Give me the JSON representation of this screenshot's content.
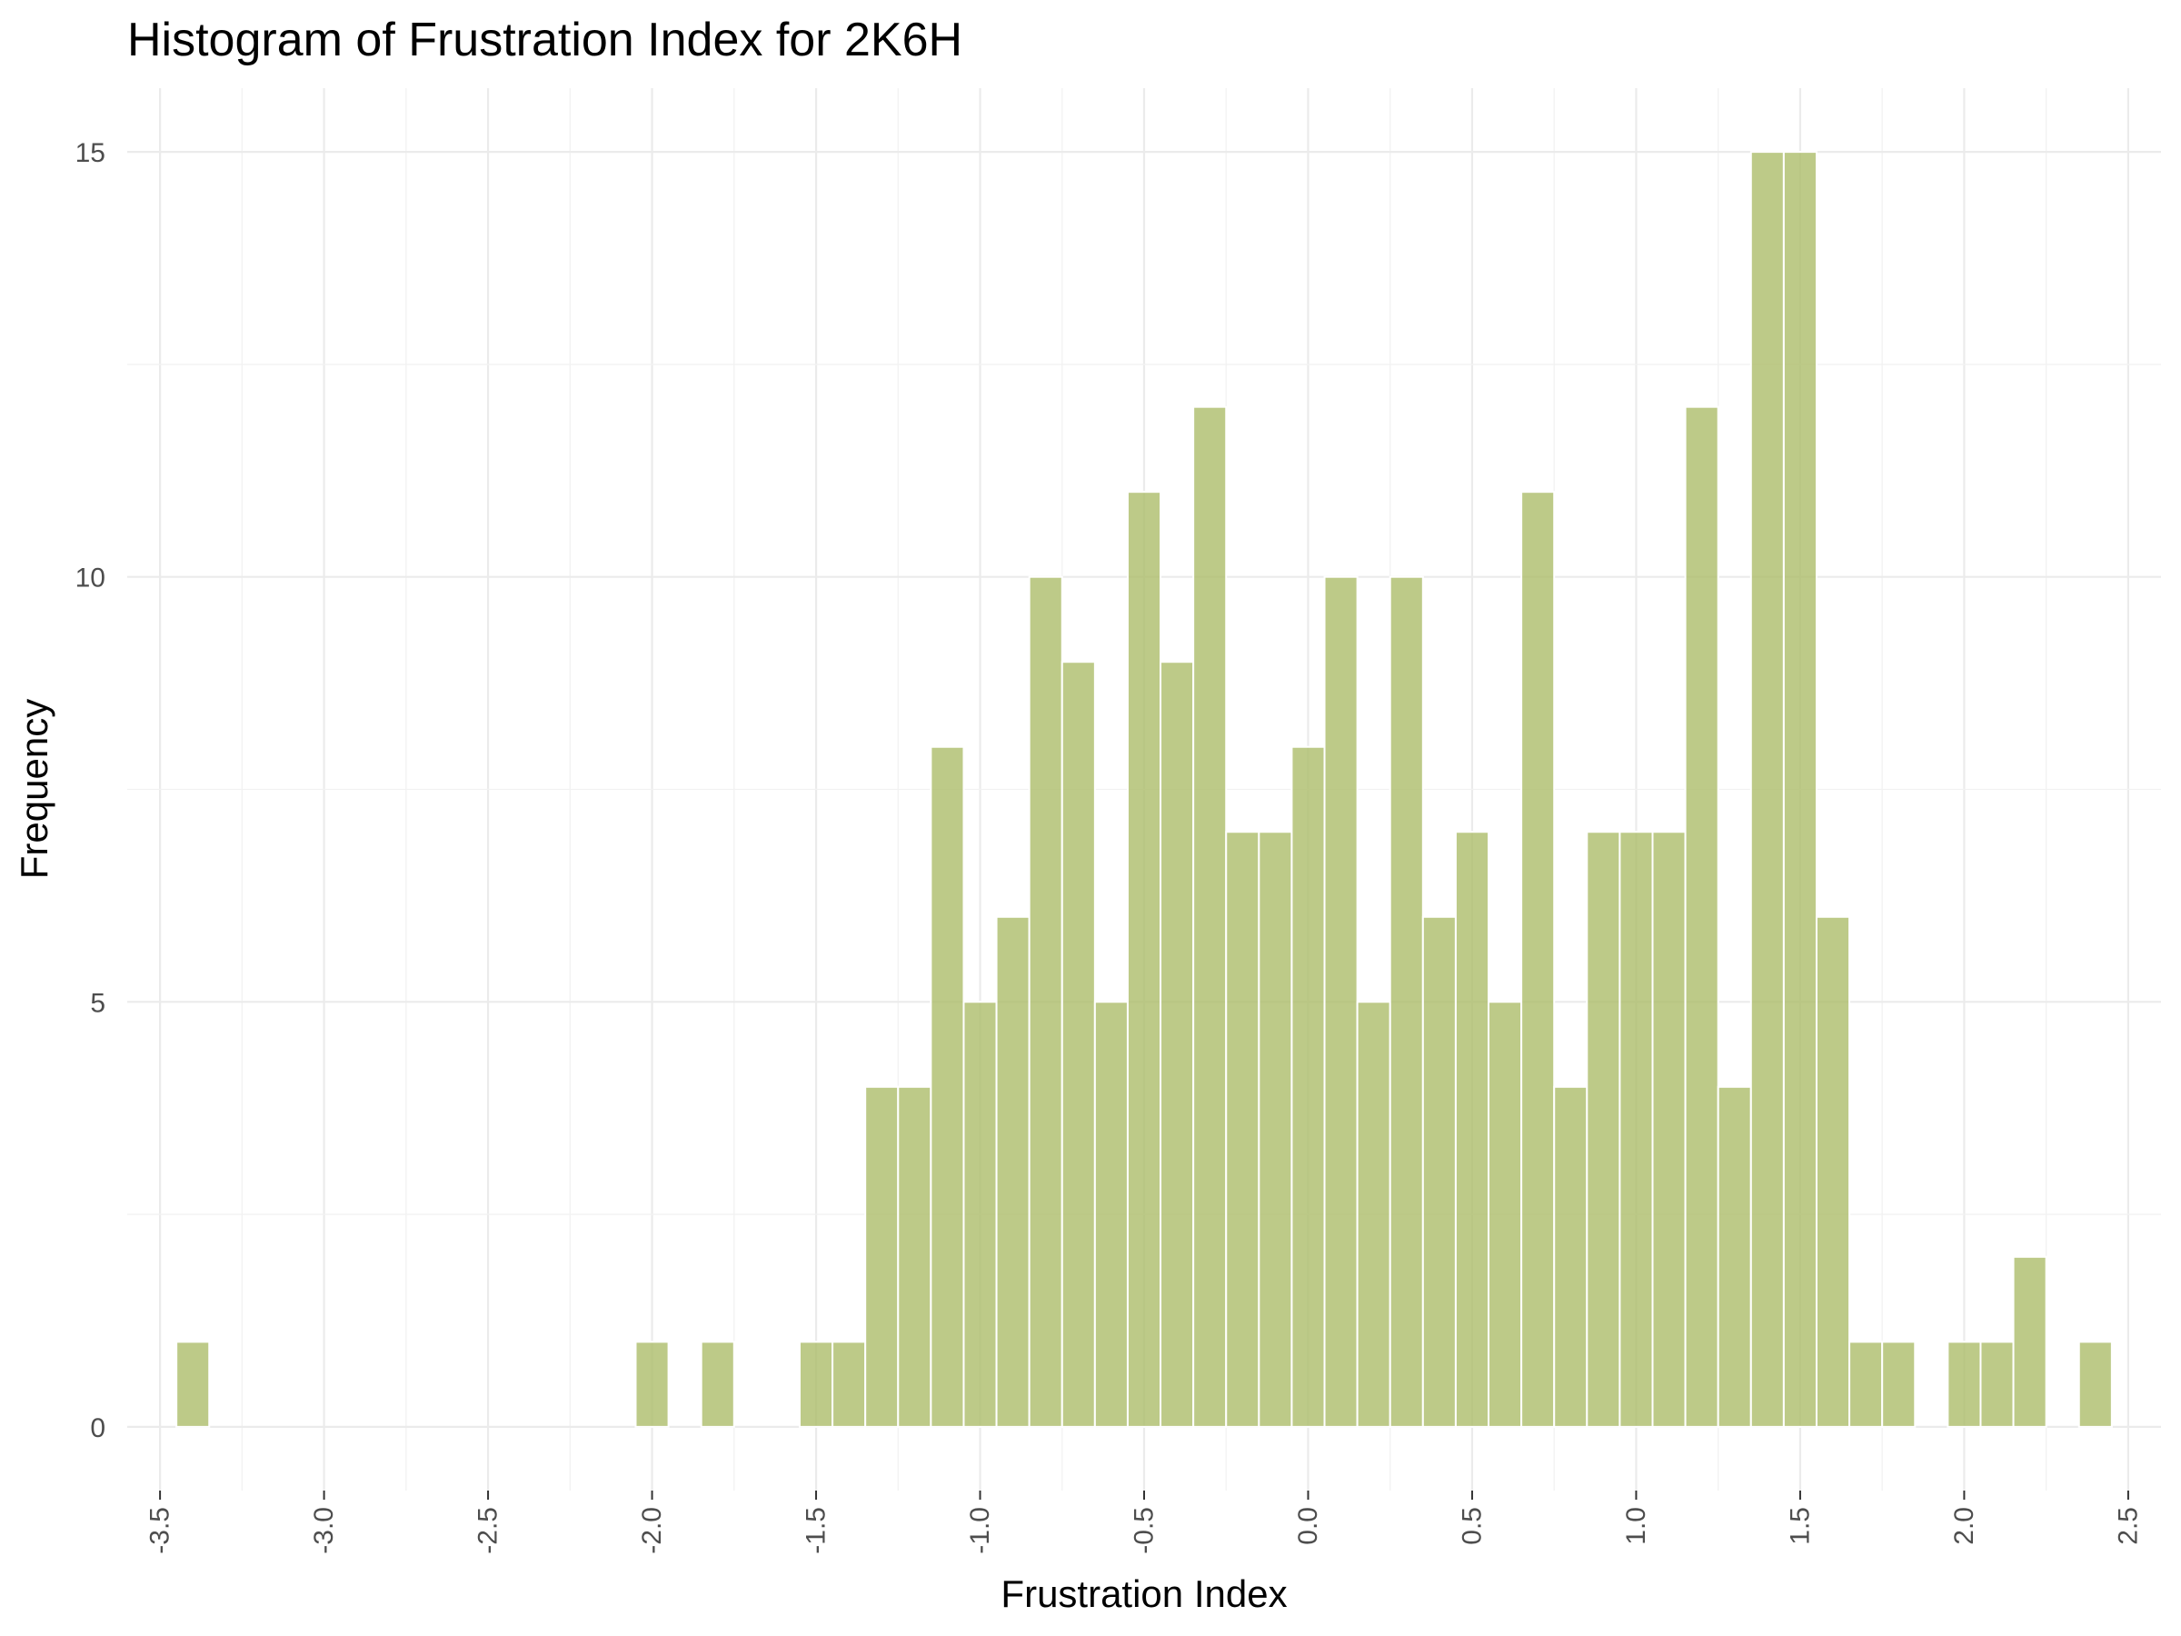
{
  "chart_data": {
    "type": "bar",
    "title": "Histogram of Frustration Index for 2K6H",
    "xlabel": "Frustration Index",
    "ylabel": "Frequency",
    "bin_width": 0.1,
    "bin_centers": [
      -3.4,
      -2.0,
      -1.8,
      -1.5,
      -1.4,
      -1.3,
      -1.2,
      -1.1,
      -1.0,
      -0.9,
      -0.8,
      -0.7,
      -0.6,
      -0.5,
      -0.4,
      -0.3,
      -0.2,
      -0.1,
      0.0,
      0.1,
      0.2,
      0.3,
      0.4,
      0.5,
      0.6,
      0.7,
      0.8,
      0.9,
      1.0,
      1.1,
      1.2,
      1.3,
      1.4,
      1.5,
      1.6,
      1.7,
      1.8,
      2.0,
      2.1,
      2.2,
      2.4
    ],
    "values": [
      1,
      1,
      1,
      1,
      1,
      4,
      4,
      8,
      5,
      6,
      10,
      9,
      5,
      11,
      9,
      12,
      7,
      7,
      8,
      10,
      5,
      10,
      6,
      7,
      5,
      11,
      4,
      7,
      7,
      7,
      12,
      4,
      15,
      15,
      6,
      1,
      1,
      1,
      1,
      2,
      1
    ],
    "xlim": [
      -3.6,
      2.6
    ],
    "ylim": [
      -0.75,
      15.75
    ],
    "x_ticks": [
      "-3.5",
      "-3.0",
      "-2.5",
      "-2.0",
      "-1.5",
      "-1.0",
      "-0.5",
      "0.0",
      "0.5",
      "1.0",
      "1.5",
      "2.0",
      "2.5"
    ],
    "y_ticks": [
      "0",
      "5",
      "10",
      "15"
    ],
    "bar_color": "#adbd6a",
    "bar_opacity": 0.8,
    "bar_edge_color": "#ffffff",
    "grid": true,
    "legend": "none"
  }
}
